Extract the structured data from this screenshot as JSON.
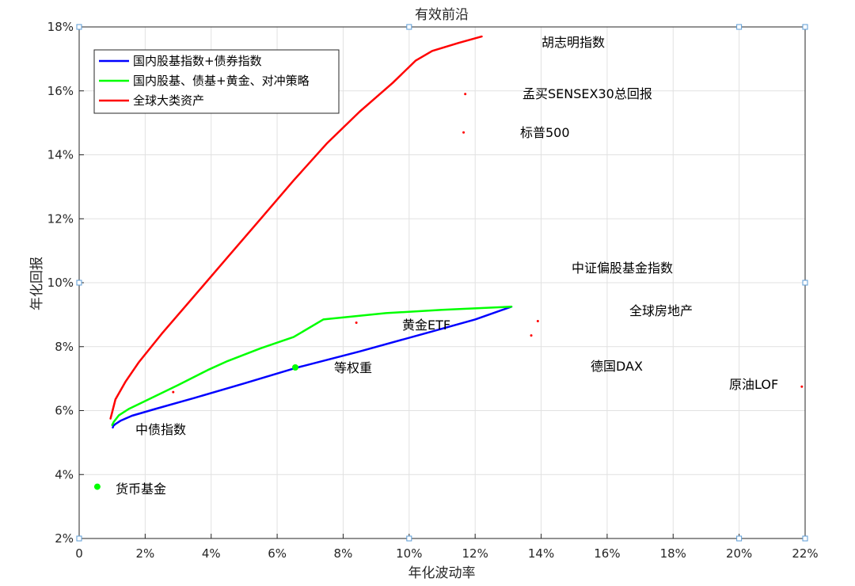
{
  "chart_data": {
    "type": "line",
    "title": "有效前沿",
    "xlabel": "年化波动率",
    "ylabel": "年化回报",
    "xlim": [
      0,
      22
    ],
    "ylim": [
      2,
      18
    ],
    "x_ticks": [
      "0",
      "2%",
      "4%",
      "6%",
      "8%",
      "10%",
      "12%",
      "14%",
      "16%",
      "18%",
      "20%",
      "22%"
    ],
    "y_ticks": [
      "2%",
      "4%",
      "6%",
      "8%",
      "10%",
      "12%",
      "14%",
      "16%",
      "18%"
    ],
    "grid": true,
    "legend_position": "top-left",
    "series": [
      {
        "name": "国内股基指数+债券指数",
        "color": "#0000ff",
        "points": [
          [
            1.02,
            5.47
          ],
          [
            1.04,
            5.53
          ],
          [
            1.1,
            5.58
          ],
          [
            1.25,
            5.68
          ],
          [
            1.6,
            5.84
          ],
          [
            2.3,
            6.05
          ],
          [
            3.5,
            6.4
          ],
          [
            5.0,
            6.85
          ],
          [
            6.55,
            7.33
          ],
          [
            8.5,
            7.85
          ],
          [
            10.5,
            8.42
          ],
          [
            12.0,
            8.85
          ],
          [
            13.1,
            9.25
          ]
        ]
      },
      {
        "name": "国内股基、债基+黄金、对冲策略",
        "color": "#00ff00",
        "points": [
          [
            1.0,
            5.55
          ],
          [
            1.05,
            5.65
          ],
          [
            1.2,
            5.85
          ],
          [
            1.5,
            6.05
          ],
          [
            2.2,
            6.4
          ],
          [
            3.0,
            6.8
          ],
          [
            3.9,
            7.27
          ],
          [
            4.5,
            7.55
          ],
          [
            5.5,
            7.95
          ],
          [
            6.5,
            8.3
          ],
          [
            7.4,
            8.85
          ],
          [
            9.3,
            9.05
          ],
          [
            11.0,
            9.15
          ],
          [
            13.1,
            9.25
          ]
        ]
      },
      {
        "name": "全球大类资产",
        "color": "#ff0000",
        "points": [
          [
            0.95,
            5.75
          ],
          [
            1.0,
            5.95
          ],
          [
            1.1,
            6.35
          ],
          [
            1.4,
            6.9
          ],
          [
            1.8,
            7.5
          ],
          [
            2.5,
            8.4
          ],
          [
            3.5,
            9.6
          ],
          [
            4.5,
            10.8
          ],
          [
            5.5,
            12.0
          ],
          [
            6.5,
            13.2
          ],
          [
            7.5,
            14.35
          ],
          [
            8.5,
            15.35
          ],
          [
            9.5,
            16.25
          ],
          [
            10.2,
            16.95
          ],
          [
            10.7,
            17.25
          ],
          [
            11.5,
            17.5
          ],
          [
            12.2,
            17.7
          ]
        ]
      }
    ],
    "points": [
      {
        "label": "胡志明指数",
        "x": 12.2,
        "y": 17.7,
        "marker_color": "#ff0000",
        "marker_size": 0
      },
      {
        "label": "孟买SENSEX30总回报",
        "x": 11.7,
        "y": 15.9,
        "marker_color": "#ff0000",
        "marker_size": 1.5
      },
      {
        "label": "标普500",
        "x": 11.65,
        "y": 14.7,
        "marker_color": "#ff0000",
        "marker_size": 1.5
      },
      {
        "label": "中证偏股基金指数",
        "x": 13.1,
        "y": 9.25,
        "marker_color": "#ff0000",
        "marker_size": 0
      },
      {
        "label": "全球房地产",
        "x": 13.9,
        "y": 8.8,
        "marker_color": "#ff0000",
        "marker_size": 1.5
      },
      {
        "label": "德国DAX",
        "x": 13.7,
        "y": 8.35,
        "marker_color": "#ff0000",
        "marker_size": 1.5
      },
      {
        "label": "原油LOF",
        "x": 21.9,
        "y": 6.75,
        "marker_color": "#ff0000",
        "marker_size": 1.5
      },
      {
        "label": "黄金ETF",
        "x": 8.4,
        "y": 8.75,
        "marker_color": "#ff0000",
        "marker_size": 1.5
      },
      {
        "label": "等权重",
        "x": 6.55,
        "y": 7.35,
        "marker_color": "#00ff00",
        "marker_size": 4
      },
      {
        "label": "中债指数",
        "x": 2.85,
        "y": 6.58,
        "marker_color": "#ff0000",
        "marker_size": 1.5
      },
      {
        "label": "货币基金",
        "x": 0.55,
        "y": 3.62,
        "marker_color": "#00ff00",
        "marker_size": 4
      }
    ]
  }
}
